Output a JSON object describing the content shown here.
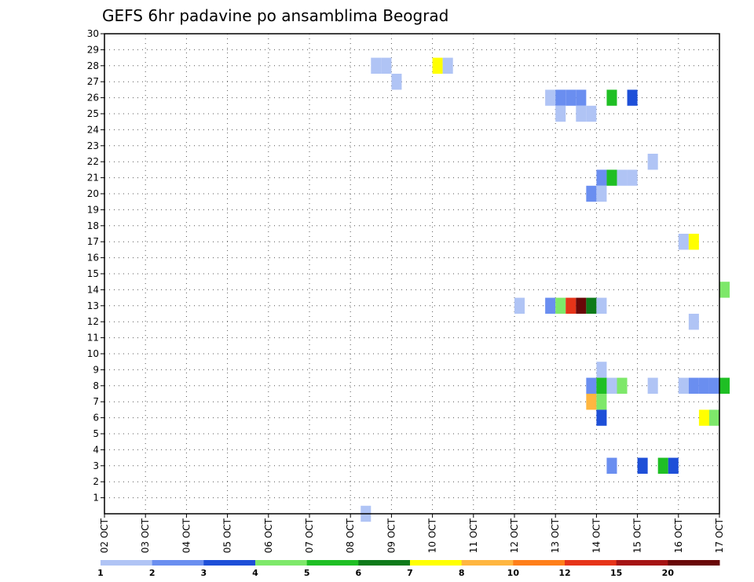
{
  "chart_data": {
    "type": "heatmap",
    "title": "GEFS 6hr padavine po ansamblima Beograd",
    "xlabel": "",
    "ylabel": "",
    "x_tick_labels": [
      "02 OCT",
      "03 OCT",
      "04 OCT",
      "05 OCT",
      "06 OCT",
      "07 OCT",
      "08 OCT",
      "09 OCT",
      "10 OCT",
      "11 OCT",
      "12 OCT",
      "13 OCT",
      "14 OCT",
      "15 OCT",
      "16 OCT",
      "17 OCT"
    ],
    "y_tick_labels": [
      "1",
      "2",
      "3",
      "4",
      "5",
      "6",
      "7",
      "8",
      "9",
      "10",
      "11",
      "12",
      "13",
      "14",
      "15",
      "16",
      "17",
      "18",
      "19",
      "20",
      "21",
      "22",
      "23",
      "24",
      "25",
      "26",
      "27",
      "28",
      "29",
      "30"
    ],
    "xlim_days_from_02oct": [
      0,
      15
    ],
    "ylim_member": [
      0,
      30
    ],
    "grid": true,
    "cell_width_days": 0.25,
    "colorbar": {
      "labels": [
        "1",
        "2",
        "3",
        "4",
        "5",
        "6",
        "7",
        "8",
        "10",
        "12",
        "15",
        "20"
      ],
      "colors": [
        "#b0c4f5",
        "#6a8ef0",
        "#1e4fd8",
        "#7ee86a",
        "#1fbf24",
        "#0e7a1a",
        "#ffff00",
        "#ffb640",
        "#ff7f1a",
        "#e63419",
        "#a61414",
        "#6a0808"
      ]
    },
    "cells": [
      {
        "member": 28,
        "x": 6.5,
        "color": "#b0c4f5"
      },
      {
        "member": 28,
        "x": 6.75,
        "color": "#b0c4f5"
      },
      {
        "member": 28,
        "x": 8.0,
        "color": "#ffff00"
      },
      {
        "member": 28,
        "x": 8.25,
        "color": "#b0c4f5"
      },
      {
        "member": 27,
        "x": 7.0,
        "color": "#b0c4f5"
      },
      {
        "member": 26,
        "x": 10.75,
        "color": "#b0c4f5"
      },
      {
        "member": 26,
        "x": 11.0,
        "color": "#6a8ef0"
      },
      {
        "member": 26,
        "x": 11.25,
        "color": "#6a8ef0"
      },
      {
        "member": 26,
        "x": 11.5,
        "color": "#6a8ef0"
      },
      {
        "member": 26,
        "x": 12.25,
        "color": "#1fbf24"
      },
      {
        "member": 26,
        "x": 12.75,
        "color": "#1e4fd8"
      },
      {
        "member": 25,
        "x": 11.0,
        "color": "#b0c4f5"
      },
      {
        "member": 25,
        "x": 11.5,
        "color": "#b0c4f5"
      },
      {
        "member": 25,
        "x": 11.75,
        "color": "#b0c4f5"
      },
      {
        "member": 22,
        "x": 13.25,
        "color": "#b0c4f5"
      },
      {
        "member": 21,
        "x": 12.0,
        "color": "#6a8ef0"
      },
      {
        "member": 21,
        "x": 12.25,
        "color": "#1fbf24"
      },
      {
        "member": 21,
        "x": 12.5,
        "color": "#b0c4f5"
      },
      {
        "member": 21,
        "x": 12.75,
        "color": "#b0c4f5"
      },
      {
        "member": 20,
        "x": 11.75,
        "color": "#6a8ef0"
      },
      {
        "member": 20,
        "x": 12.0,
        "color": "#b0c4f5"
      },
      {
        "member": 17,
        "x": 14.0,
        "color": "#b0c4f5"
      },
      {
        "member": 17,
        "x": 14.25,
        "color": "#ffff00"
      },
      {
        "member": 14,
        "x": 15.0,
        "color": "#7ee86a"
      },
      {
        "member": 13,
        "x": 10.0,
        "color": "#b0c4f5"
      },
      {
        "member": 13,
        "x": 10.75,
        "color": "#6a8ef0"
      },
      {
        "member": 13,
        "x": 11.0,
        "color": "#7ee86a"
      },
      {
        "member": 13,
        "x": 11.25,
        "color": "#e63419"
      },
      {
        "member": 13,
        "x": 11.5,
        "color": "#6a0808"
      },
      {
        "member": 13,
        "x": 11.75,
        "color": "#0e7a1a"
      },
      {
        "member": 13,
        "x": 12.0,
        "color": "#b0c4f5"
      },
      {
        "member": 12,
        "x": 14.25,
        "color": "#b0c4f5"
      },
      {
        "member": 9,
        "x": 12.0,
        "color": "#b0c4f5"
      },
      {
        "member": 8,
        "x": 11.75,
        "color": "#6a8ef0"
      },
      {
        "member": 8,
        "x": 12.0,
        "color": "#1fbf24"
      },
      {
        "member": 8,
        "x": 12.25,
        "color": "#b0c4f5"
      },
      {
        "member": 8,
        "x": 12.5,
        "color": "#7ee86a"
      },
      {
        "member": 8,
        "x": 13.25,
        "color": "#b0c4f5"
      },
      {
        "member": 8,
        "x": 14.0,
        "color": "#b0c4f5"
      },
      {
        "member": 8,
        "x": 14.25,
        "color": "#6a8ef0"
      },
      {
        "member": 8,
        "x": 14.5,
        "color": "#6a8ef0"
      },
      {
        "member": 8,
        "x": 14.75,
        "color": "#6a8ef0"
      },
      {
        "member": 8,
        "x": 15.0,
        "color": "#1fbf24"
      },
      {
        "member": 7,
        "x": 11.75,
        "color": "#ffb640"
      },
      {
        "member": 7,
        "x": 12.0,
        "color": "#7ee86a"
      },
      {
        "member": 6,
        "x": 12.0,
        "color": "#1e4fd8"
      },
      {
        "member": 6,
        "x": 14.5,
        "color": "#ffff00"
      },
      {
        "member": 6,
        "x": 14.75,
        "color": "#7ee86a"
      },
      {
        "member": 3,
        "x": 12.25,
        "color": "#6a8ef0"
      },
      {
        "member": 3,
        "x": 13.0,
        "color": "#1e4fd8"
      },
      {
        "member": 3,
        "x": 13.5,
        "color": "#1fbf24"
      },
      {
        "member": 3,
        "x": 13.75,
        "color": "#1e4fd8"
      },
      {
        "member": 0,
        "x": 6.25,
        "color": "#b0c4f5"
      }
    ]
  }
}
